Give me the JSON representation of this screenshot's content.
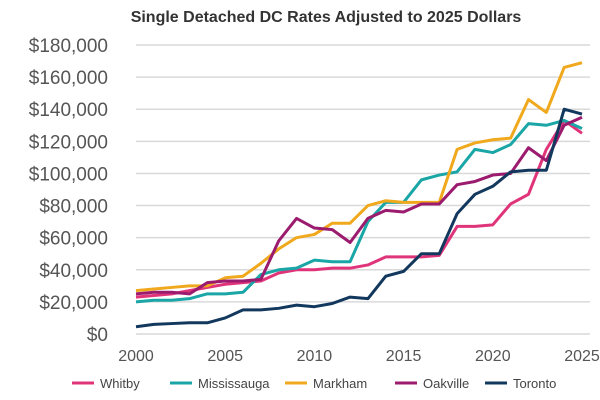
{
  "chart_data": {
    "type": "line",
    "title": "Single Detached DC Rates Adjusted to 2025 Dollars",
    "xlabel": "",
    "ylabel": "",
    "x": [
      2000,
      2001,
      2002,
      2003,
      2004,
      2005,
      2006,
      2007,
      2008,
      2009,
      2010,
      2011,
      2012,
      2013,
      2014,
      2015,
      2016,
      2017,
      2018,
      2019,
      2020,
      2021,
      2022,
      2023,
      2024,
      2025
    ],
    "xlim": [
      2000,
      2025
    ],
    "ylim": [
      0,
      180000
    ],
    "xticks": [
      "2000",
      "2005",
      "2010",
      "2015",
      "2020",
      "2025"
    ],
    "yticks": [
      "$0",
      "$20,000",
      "$40,000",
      "$60,000",
      "$80,000",
      "$100,000",
      "$120,000",
      "$140,000",
      "$160,000",
      "$180,000"
    ],
    "grid": true,
    "legend_position": "bottom",
    "series": [
      {
        "name": "Whitby",
        "color": "#e0347a",
        "values": [
          23000,
          24000,
          25000,
          27000,
          29000,
          31000,
          32000,
          33000,
          38000,
          40000,
          40000,
          41000,
          41000,
          43000,
          48000,
          48000,
          48000,
          49000,
          67000,
          67000,
          68000,
          81000,
          87000,
          115000,
          133000,
          125000
        ]
      },
      {
        "name": "Mississauga",
        "color": "#1aa6a6",
        "values": [
          20000,
          21000,
          21000,
          22000,
          25000,
          25000,
          26000,
          37000,
          40000,
          41000,
          46000,
          45000,
          45000,
          70000,
          82000,
          82000,
          96000,
          99000,
          101000,
          115000,
          113000,
          118000,
          131000,
          130000,
          133000,
          128000
        ]
      },
      {
        "name": "Markham",
        "color": "#f0a81c",
        "values": [
          27000,
          28000,
          29000,
          30000,
          30000,
          35000,
          36000,
          44000,
          53000,
          60000,
          62000,
          69000,
          69000,
          80000,
          83000,
          82000,
          82000,
          82000,
          115000,
          119000,
          121000,
          122000,
          146000,
          138000,
          166000,
          169000
        ]
      },
      {
        "name": "Oakville",
        "color": "#9b1b6e",
        "values": [
          25000,
          26000,
          26000,
          25000,
          32000,
          33000,
          33000,
          34000,
          58000,
          72000,
          66000,
          65000,
          57000,
          72000,
          77000,
          76000,
          81000,
          81000,
          93000,
          95000,
          99000,
          100000,
          116000,
          108000,
          130000,
          135000
        ]
      },
      {
        "name": "Toronto",
        "color": "#13385e",
        "values": [
          4500,
          6000,
          6500,
          7000,
          7000,
          10000,
          15000,
          15000,
          16000,
          18000,
          17000,
          19000,
          23000,
          22000,
          36000,
          39000,
          50000,
          50000,
          75000,
          87000,
          92000,
          101000,
          102000,
          102000,
          140000,
          137000
        ]
      }
    ]
  }
}
